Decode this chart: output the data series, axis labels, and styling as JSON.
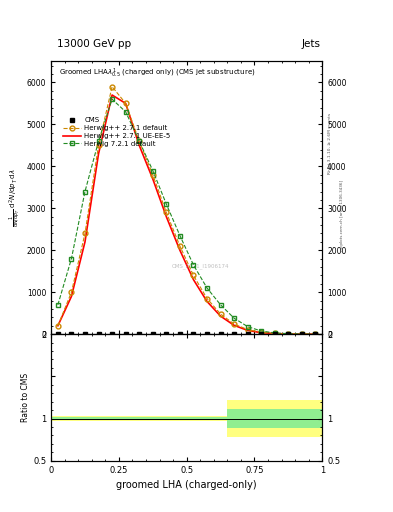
{
  "title_left": "13000 GeV pp",
  "title_right": "Jets",
  "main_title": "Groomed LHA$\\lambda^1_{0.5}$ (charged only) (CMS jet substructure)",
  "xlabel": "groomed LHA (charged-only)",
  "ylabel_main": "$\\frac{1}{\\mathrm{d}N/\\mathrm{d}p_T}$ $\\mathrm{d}^2N / \\mathrm{d}p_T\\,\\mathrm{d}\\lambda$",
  "ylabel_ratio": "Ratio to CMS",
  "watermark": "CMS_2021_I1906174",
  "rivet_text": "Rivet 3.1.10, ≥ 2.6M events",
  "mcplots_text": "mcplots.cern.ch [arXiv:1306.3436]",
  "cms_x": [
    0.025,
    0.075,
    0.125,
    0.175,
    0.225,
    0.275,
    0.325,
    0.375,
    0.425,
    0.475,
    0.525,
    0.575,
    0.625,
    0.675,
    0.725,
    0.775,
    0.825,
    0.875,
    0.925,
    0.975
  ],
  "cms_y": [
    0.0,
    0.0,
    0.0,
    0.0,
    0.0,
    0.0,
    0.0,
    0.0,
    0.0,
    0.0,
    0.0,
    0.0,
    0.0,
    0.0,
    0.0,
    0.0,
    0.0,
    0.0,
    0.0,
    0.0
  ],
  "hw271_default_x": [
    0.025,
    0.075,
    0.125,
    0.175,
    0.225,
    0.275,
    0.325,
    0.375,
    0.425,
    0.475,
    0.525,
    0.575,
    0.625,
    0.675,
    0.725,
    0.775,
    0.825,
    0.875,
    0.925,
    0.975
  ],
  "hw271_default_y": [
    200,
    1000,
    2400,
    4500,
    5900,
    5500,
    4600,
    3800,
    2900,
    2100,
    1400,
    850,
    480,
    240,
    110,
    45,
    18,
    7,
    2,
    0.5
  ],
  "hw271_ueee5_x": [
    0.025,
    0.075,
    0.125,
    0.175,
    0.225,
    0.275,
    0.325,
    0.375,
    0.425,
    0.475,
    0.525,
    0.575,
    0.625,
    0.675,
    0.725,
    0.775,
    0.825,
    0.875,
    0.925,
    0.975
  ],
  "hw271_ueee5_y": [
    200,
    900,
    2200,
    4300,
    5700,
    5500,
    4500,
    3700,
    2800,
    2000,
    1300,
    780,
    430,
    210,
    90,
    35,
    14,
    5,
    1.5,
    0.4
  ],
  "hw721_default_x": [
    0.025,
    0.075,
    0.125,
    0.175,
    0.225,
    0.275,
    0.325,
    0.375,
    0.425,
    0.475,
    0.525,
    0.575,
    0.625,
    0.675,
    0.725,
    0.775,
    0.825,
    0.875,
    0.925,
    0.975
  ],
  "hw721_default_y": [
    700,
    1800,
    3400,
    4600,
    5600,
    5300,
    4600,
    3900,
    3100,
    2350,
    1650,
    1100,
    700,
    380,
    180,
    75,
    30,
    12,
    4,
    1
  ],
  "color_cms": "#000000",
  "color_hw271_default": "#cc8800",
  "color_hw271_ueee5": "#ff0000",
  "color_hw721_default": "#228b22",
  "color_band_green": "#90ee90",
  "color_band_yellow": "#ffff80",
  "ylim_main": [
    0,
    6500
  ],
  "ylim_ratio": [
    0.5,
    2.0
  ],
  "xlim": [
    0.0,
    1.0
  ],
  "bg_color": "#ffffff"
}
